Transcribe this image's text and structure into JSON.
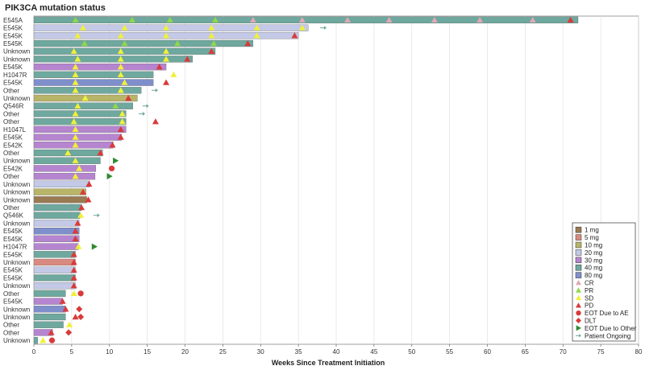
{
  "chart_data": {
    "type": "bar",
    "title": "PIK3CA mutation status",
    "xlabel": "Weeks Since Treatment Initiation",
    "xlim": [
      0,
      80
    ],
    "xticks": [
      0,
      5,
      10,
      15,
      20,
      25,
      30,
      35,
      40,
      45,
      50,
      55,
      60,
      65,
      70,
      75,
      80
    ],
    "grid": true,
    "legend_position": "bottom-right",
    "dose_colors": {
      "1 mg": "#9a7a52",
      "5 mg": "#d98a80",
      "10 mg": "#b8b468",
      "20 mg": "#c3c9e6",
      "30 mg": "#b585d0",
      "40 mg": "#6ea89e",
      "80 mg": "#7f8fcc"
    },
    "response_colors": {
      "CR": "#e0a8b4",
      "PR": "#8fd84a",
      "SD": "#f0f03a",
      "PD": "#d93a3a",
      "EOT Due to AE": "#d93a3a",
      "DLT": "#d93a3a",
      "EOT Due to Other": "#2f8a2f",
      "Patient Ongoing": "#6ea89e"
    },
    "legend": {
      "dose_items": [
        "1 mg",
        "5 mg",
        "10 mg",
        "20 mg",
        "30 mg",
        "40 mg",
        "80 mg"
      ],
      "event_items": [
        "CR",
        "PR",
        "SD",
        "PD",
        "EOT Due to AE",
        "DLT",
        "EOT Due to Other",
        "Patient Ongoing"
      ]
    },
    "patients": [
      {
        "label": "E545A",
        "dose": "40 mg",
        "weeks": 72,
        "events": [
          [
            "PR",
            5.5
          ],
          [
            "PR",
            13
          ],
          [
            "PR",
            18
          ],
          [
            "PR",
            24
          ],
          [
            "CR",
            29
          ],
          [
            "CR",
            35.5
          ],
          [
            "CR",
            41.5
          ],
          [
            "CR",
            47
          ],
          [
            "CR",
            53
          ],
          [
            "CR",
            59
          ],
          [
            "CR",
            66
          ],
          [
            "PD",
            71
          ]
        ]
      },
      {
        "label": "E545K",
        "dose": "20 mg",
        "weeks": 36.3,
        "events": [
          [
            "SD",
            6.5
          ],
          [
            "SD",
            12
          ],
          [
            "SD",
            17.5
          ],
          [
            "SD",
            23.5
          ],
          [
            "SD",
            29.5
          ],
          [
            "SD",
            35.5
          ],
          [
            "Patient Ongoing",
            38.3
          ]
        ]
      },
      {
        "label": "E545K",
        "dose": "20 mg",
        "weeks": 35,
        "events": [
          [
            "SD",
            5.8
          ],
          [
            "SD",
            11.5
          ],
          [
            "SD",
            17.5
          ],
          [
            "SD",
            23.5
          ],
          [
            "SD",
            29.5
          ],
          [
            "PD",
            34.5
          ]
        ]
      },
      {
        "label": "E545K",
        "dose": "40 mg",
        "weeks": 29,
        "events": [
          [
            "PR",
            6.7
          ],
          [
            "PR",
            12
          ],
          [
            "PR",
            19
          ],
          [
            "PR",
            23.8
          ],
          [
            "PD",
            28.3
          ]
        ]
      },
      {
        "label": "Unknown",
        "dose": "40 mg",
        "weeks": 24,
        "events": [
          [
            "SD",
            5.3
          ],
          [
            "SD",
            11.5
          ],
          [
            "SD",
            17.5
          ],
          [
            "PD",
            23.5
          ]
        ]
      },
      {
        "label": "Unknown",
        "dose": "40 mg",
        "weeks": 21,
        "events": [
          [
            "SD",
            5.8
          ],
          [
            "SD",
            11.5
          ],
          [
            "SD",
            17.5
          ],
          [
            "PD",
            20.3
          ]
        ]
      },
      {
        "label": "E545K",
        "dose": "30 mg",
        "weeks": 17.5,
        "events": [
          [
            "SD",
            5.5
          ],
          [
            "SD",
            11.5
          ],
          [
            "PD",
            16.6
          ]
        ]
      },
      {
        "label": "H1047R",
        "dose": "40 mg",
        "weeks": 15.8,
        "events": [
          [
            "SD",
            5.5
          ],
          [
            "SD",
            11.5
          ],
          [
            "SD",
            18.5
          ]
        ]
      },
      {
        "label": "E545K",
        "dose": "80 mg",
        "weeks": 15.8,
        "events": [
          [
            "SD",
            5.5
          ],
          [
            "SD",
            12
          ],
          [
            "PD",
            17.5
          ]
        ]
      },
      {
        "label": "Other",
        "dose": "40 mg",
        "weeks": 14.2,
        "events": [
          [
            "SD",
            5.5
          ],
          [
            "SD",
            11.5
          ],
          [
            "Patient Ongoing",
            16
          ]
        ]
      },
      {
        "label": "Unknown",
        "dose": "10 mg",
        "weeks": 13.7,
        "events": [
          [
            "SD",
            6.8
          ],
          [
            "PD",
            12.5
          ]
        ]
      },
      {
        "label": "Q546R",
        "dose": "40 mg",
        "weeks": 13.1,
        "events": [
          [
            "SD",
            5.8
          ],
          [
            "PR",
            10.8
          ],
          [
            "Patient Ongoing",
            14.8
          ]
        ]
      },
      {
        "label": "Other",
        "dose": "40 mg",
        "weeks": 12.2,
        "events": [
          [
            "SD",
            5.5
          ],
          [
            "SD",
            11.7
          ],
          [
            "Patient Ongoing",
            14.3
          ]
        ]
      },
      {
        "label": "Other",
        "dose": "40 mg",
        "weeks": 12.2,
        "events": [
          [
            "SD",
            5.3
          ],
          [
            "SD",
            11.7
          ],
          [
            "PD",
            16.1
          ]
        ]
      },
      {
        "label": "H1047L",
        "dose": "30 mg",
        "weeks": 12.2,
        "events": [
          [
            "SD",
            5.5
          ],
          [
            "PD",
            11.5
          ]
        ]
      },
      {
        "label": "E545K",
        "dose": "30 mg",
        "weeks": 11.6,
        "events": [
          [
            "SD",
            5.5
          ],
          [
            "PD",
            11.5
          ]
        ]
      },
      {
        "label": "E542K",
        "dose": "30 mg",
        "weeks": 10.5,
        "events": [
          [
            "SD",
            5.5
          ],
          [
            "PD",
            10.4
          ]
        ]
      },
      {
        "label": "Other",
        "dose": "40 mg",
        "weeks": 9.1,
        "events": [
          [
            "SD",
            4.5
          ],
          [
            "PD",
            8.8
          ]
        ]
      },
      {
        "label": "Unknown",
        "dose": "40 mg",
        "weeks": 8.8,
        "events": [
          [
            "SD",
            5.5
          ],
          [
            "EOT Due to Other",
            10.8
          ]
        ]
      },
      {
        "label": "E542K",
        "dose": "30 mg",
        "weeks": 8.2,
        "events": [
          [
            "SD",
            6
          ],
          [
            "EOT Due to AE",
            10.3
          ]
        ]
      },
      {
        "label": "Other",
        "dose": "30 mg",
        "weeks": 8.1,
        "events": [
          [
            "SD",
            5.5
          ],
          [
            "EOT Due to Other",
            10
          ]
        ]
      },
      {
        "label": "Unknown",
        "dose": "20 mg",
        "weeks": 7.4,
        "events": [
          [
            "PD",
            7.3
          ]
        ]
      },
      {
        "label": "Unknown",
        "dose": "10 mg",
        "weeks": 6.9,
        "events": [
          [
            "PD",
            6.5
          ]
        ]
      },
      {
        "label": "Unknown",
        "dose": "1 mg",
        "weeks": 7,
        "events": [
          [
            "PD",
            7.2
          ]
        ]
      },
      {
        "label": "Other",
        "dose": "40 mg",
        "weeks": 6.3,
        "events": [
          [
            "PD",
            6.3
          ]
        ]
      },
      {
        "label": "Q546K",
        "dose": "40 mg",
        "weeks": 6.1,
        "events": [
          [
            "SD",
            6.2
          ],
          [
            "Patient Ongoing",
            8.3
          ]
        ]
      },
      {
        "label": "Unknown",
        "dose": "20 mg",
        "weeks": 6,
        "events": [
          [
            "PD",
            5.8
          ]
        ]
      },
      {
        "label": "E545K",
        "dose": "80 mg",
        "weeks": 6,
        "events": [
          [
            "PD",
            5.5
          ]
        ]
      },
      {
        "label": "E545K",
        "dose": "30 mg",
        "weeks": 6,
        "events": [
          [
            "PD",
            5.5
          ]
        ]
      },
      {
        "label": "H1047R",
        "dose": "30 mg",
        "weeks": 5.9,
        "events": [
          [
            "SD",
            5.9
          ],
          [
            "EOT Due to Other",
            8
          ]
        ]
      },
      {
        "label": "E545K",
        "dose": "40 mg",
        "weeks": 5.5,
        "events": [
          [
            "PD",
            5.3
          ]
        ]
      },
      {
        "label": "Unknown",
        "dose": "5 mg",
        "weeks": 5.5,
        "events": [
          [
            "PD",
            5.3
          ]
        ]
      },
      {
        "label": "E545K",
        "dose": "20 mg",
        "weeks": 5.5,
        "events": [
          [
            "PD",
            5.3
          ]
        ]
      },
      {
        "label": "E545K",
        "dose": "40 mg",
        "weeks": 5.5,
        "events": [
          [
            "PD",
            5.3
          ]
        ]
      },
      {
        "label": "Unknown",
        "dose": "20 mg",
        "weeks": 5.5,
        "events": [
          [
            "PD",
            5.3
          ]
        ]
      },
      {
        "label": "Other",
        "dose": "40 mg",
        "weeks": 4.2,
        "events": [
          [
            "SD",
            5.3
          ],
          [
            "EOT Due to AE",
            6.2
          ]
        ]
      },
      {
        "label": "E545K",
        "dose": "30 mg",
        "weeks": 3.8,
        "events": [
          [
            "PD",
            3.8
          ]
        ]
      },
      {
        "label": "Unknown",
        "dose": "80 mg",
        "weeks": 4.2,
        "events": [
          [
            "PD",
            4.2
          ],
          [
            "DLT",
            6
          ]
        ]
      },
      {
        "label": "Unknown",
        "dose": "40 mg",
        "weeks": 4.2,
        "events": [
          [
            "PD",
            5.5
          ],
          [
            "DLT",
            6.2
          ]
        ]
      },
      {
        "label": "Other",
        "dose": "40 mg",
        "weeks": 3.9,
        "events": [
          [
            "SD",
            4.7
          ]
        ]
      },
      {
        "label": "Other",
        "dose": "30 mg",
        "weeks": 2.5,
        "events": [
          [
            "PD",
            2.3
          ],
          [
            "DLT",
            4.6
          ]
        ]
      },
      {
        "label": "Unknown",
        "dose": "40 mg",
        "weeks": 0.5,
        "events": [
          [
            "SD",
            1.2
          ],
          [
            "EOT Due to AE",
            2.4
          ]
        ]
      }
    ]
  }
}
